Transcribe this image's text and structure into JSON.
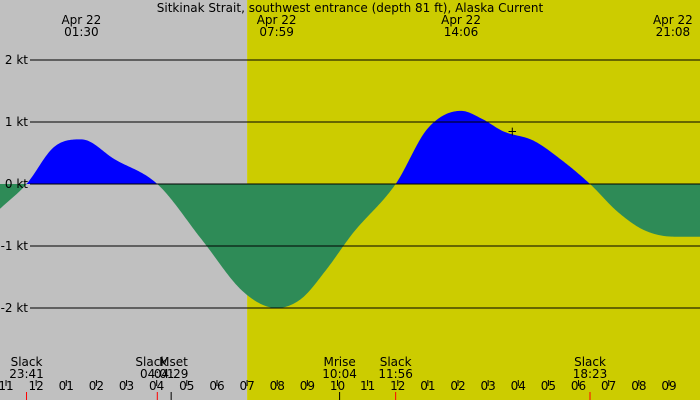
{
  "colors": {
    "night": "#c0c0c0",
    "day": "#cccc00",
    "flood": "#0000ff",
    "ebb": "#2e8b57",
    "grid": "#000000",
    "sun_tick": "#ff0000",
    "moon_tick": "#000000"
  },
  "chart_data": {
    "type": "area",
    "title": "Sitkinak Strait, southwest entrance (depth 81 ft), Alaska Current",
    "ylabel": "",
    "xlabel": "",
    "x_units": "hours",
    "xlim": [
      22.8,
      46.03
    ],
    "ylim": [
      -3.0,
      3.0
    ],
    "y_ticks": [
      {
        "value": 2,
        "label": "2 kt"
      },
      {
        "value": 1,
        "label": "1 kt"
      },
      {
        "value": 0,
        "label": "0 kt"
      },
      {
        "value": -1,
        "label": "-1 kt"
      },
      {
        "value": -2,
        "label": "-2 kt"
      }
    ],
    "grid": true,
    "series": [
      {
        "x": [
          22.8,
          23.68,
          24.6,
          25.5,
          26.6,
          28.02,
          29.5,
          30.9,
          31.98,
          32.8,
          33.6,
          34.5,
          35.93,
          37.0,
          38.1,
          38.8,
          39.5,
          40.5,
          41.4,
          42.38,
          43.3,
          44.2,
          45.2,
          46.03
        ],
        "y": [
          -0.4,
          0.0,
          0.6,
          0.72,
          0.4,
          0.0,
          -0.9,
          -1.75,
          -2.0,
          -1.85,
          -1.4,
          -0.8,
          0.0,
          0.9,
          1.18,
          1.05,
          0.85,
          0.7,
          0.4,
          0.0,
          -0.45,
          -0.75,
          -0.85,
          -0.85
        ]
      }
    ],
    "background_bands": [
      {
        "kind": "night",
        "x0": 22.8,
        "x1": 31.0
      },
      {
        "kind": "day",
        "x0": 31.0,
        "x1": 46.03
      }
    ],
    "top_labels": [
      {
        "x": 25.5,
        "date": "Apr 22",
        "time": "01:30"
      },
      {
        "x": 31.98,
        "date": "Apr 22",
        "time": "07:59"
      },
      {
        "x": 38.1,
        "date": "Apr 22",
        "time": "14:06"
      },
      {
        "x": 45.13,
        "date": "Apr 22",
        "time": "21:08"
      }
    ],
    "bottom_events": [
      {
        "x": 23.68,
        "label": "Slack",
        "time": "23:41"
      },
      {
        "x": 28.02,
        "label": "Slack",
        "time": "04:01"
      },
      {
        "x": 28.48,
        "label": "Mset",
        "time": "04:29"
      },
      {
        "x": 34.07,
        "label": "Mrise",
        "time": "10:04"
      },
      {
        "x": 35.93,
        "label": "Slack",
        "time": "11:56"
      },
      {
        "x": 42.38,
        "label": "Slack",
        "time": "18:23"
      }
    ],
    "x_tick_labels": [
      {
        "x": 23.0,
        "label": "11"
      },
      {
        "x": 24.0,
        "label": "12"
      },
      {
        "x": 25.0,
        "label": "01"
      },
      {
        "x": 26.0,
        "label": "02"
      },
      {
        "x": 27.0,
        "label": "03"
      },
      {
        "x": 28.0,
        "label": "04"
      },
      {
        "x": 29.0,
        "label": "05"
      },
      {
        "x": 30.0,
        "label": "06"
      },
      {
        "x": 31.0,
        "label": "07"
      },
      {
        "x": 32.0,
        "label": "08"
      },
      {
        "x": 33.0,
        "label": "09"
      },
      {
        "x": 34.0,
        "label": "10"
      },
      {
        "x": 35.0,
        "label": "11"
      },
      {
        "x": 36.0,
        "label": "12"
      },
      {
        "x": 37.0,
        "label": "01"
      },
      {
        "x": 38.0,
        "label": "02"
      },
      {
        "x": 39.0,
        "label": "03"
      },
      {
        "x": 40.0,
        "label": "04"
      },
      {
        "x": 41.0,
        "label": "05"
      },
      {
        "x": 42.0,
        "label": "06"
      },
      {
        "x": 43.0,
        "label": "07"
      },
      {
        "x": 44.0,
        "label": "08"
      },
      {
        "x": 45.0,
        "label": "09"
      }
    ],
    "marker": {
      "x": 39.8,
      "y": 0.85,
      "symbol": "+"
    }
  }
}
